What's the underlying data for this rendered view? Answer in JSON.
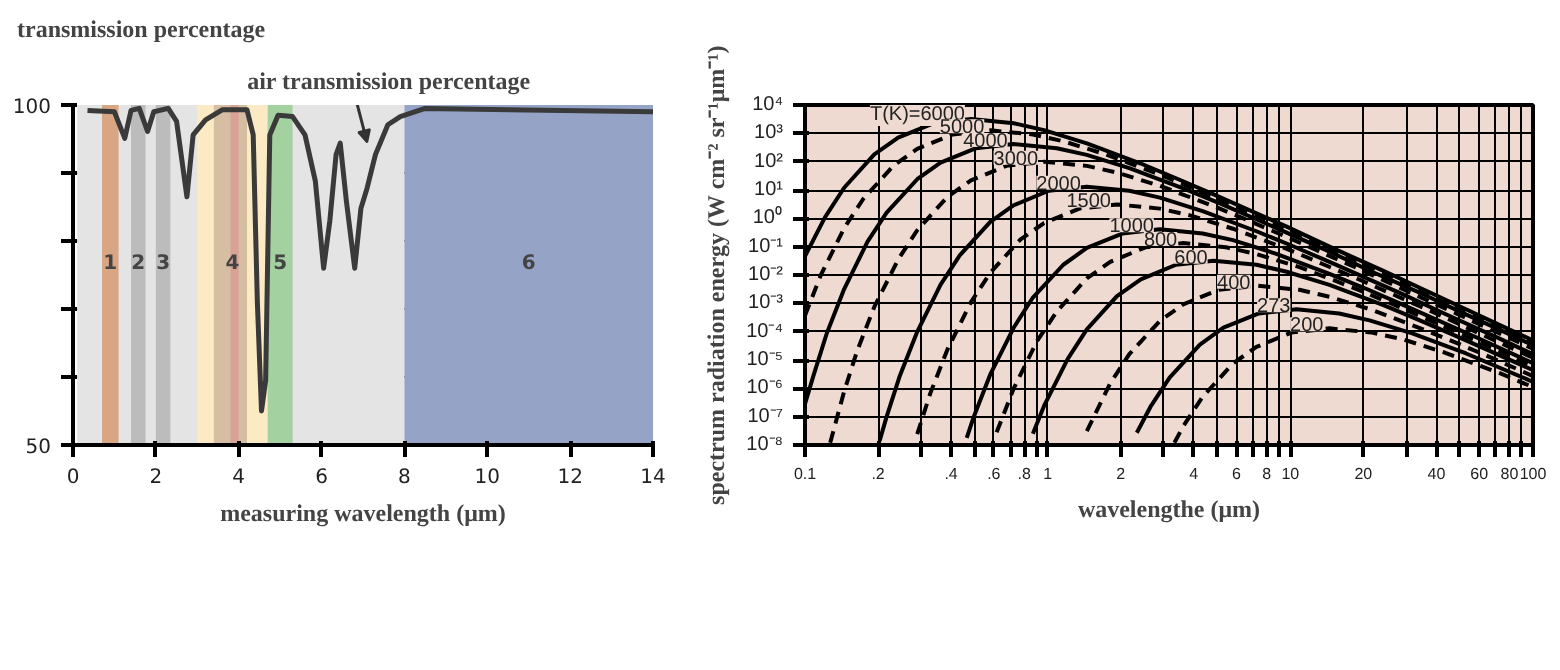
{
  "chart_data": [
    {
      "type": "line",
      "ylabel": "transmission percentage",
      "xlabel": "measuring wavelength (μm)",
      "x": [
        0.35,
        1.0,
        1.25,
        1.4,
        1.6,
        1.8,
        1.95,
        2.3,
        2.5,
        2.75,
        2.9,
        3.2,
        3.6,
        4.2,
        4.35,
        4.45,
        4.55,
        4.65,
        4.75,
        4.95,
        5.3,
        5.6,
        5.85,
        6.05,
        6.2,
        6.35,
        6.45,
        6.6,
        6.8,
        6.95,
        7.1,
        7.3,
        7.6,
        7.9,
        8.5,
        14
      ],
      "values": [
        99.2,
        99,
        95.1,
        99.2,
        99.5,
        96.1,
        99,
        99.5,
        97.6,
        86.5,
        95.6,
        97.8,
        99.3,
        99.3,
        95.6,
        71,
        55,
        59.5,
        95.6,
        98.5,
        98.3,
        95.6,
        88.8,
        76,
        83,
        92.7,
        94.4,
        85.8,
        76,
        84.8,
        87.8,
        92.7,
        97.1,
        98.3,
        99.5,
        99
      ],
      "color": "#3a3a3a",
      "xlim": [
        0,
        14
      ],
      "ylim": [
        50,
        100
      ],
      "xticks": [
        0,
        2,
        4,
        6,
        8,
        10,
        12,
        14
      ],
      "yticks": [
        50,
        {
          "value": 60,
          "label": null
        },
        {
          "value": 70,
          "label": null
        },
        {
          "value": 80,
          "label": null
        },
        {
          "value": 90,
          "label": null
        },
        100
      ],
      "grid": "y",
      "bands": [
        {
          "axis": "x",
          "from": 0.1,
          "to": 8,
          "label": null,
          "color": "#e4e4e4"
        },
        {
          "axis": "x",
          "from": 0.7,
          "to": 1.1,
          "label": "1",
          "color": "#d9a684"
        },
        {
          "axis": "x",
          "from": 1.4,
          "to": 1.75,
          "label": "2",
          "color": "#bcbcbc"
        },
        {
          "axis": "x",
          "from": 2.0,
          "to": 2.35,
          "label": "3",
          "color": "#bcbcbc"
        },
        {
          "axis": "x",
          "from": 3.0,
          "to": 4.7,
          "label": "4",
          "color": "#fbeac4"
        },
        {
          "axis": "x",
          "from": 3.4,
          "to": 4.2,
          "label": null,
          "color": "#d6bea2"
        },
        {
          "axis": "x",
          "from": 3.8,
          "to": 4.0,
          "label": null,
          "color": "#d9a296"
        },
        {
          "axis": "x",
          "from": 4.7,
          "to": 5.3,
          "label": "5",
          "color": "#a3d1a0"
        },
        {
          "axis": "x",
          "from": 8,
          "to": 14,
          "label": "6",
          "color": "#95a4c6"
        }
      ],
      "annotations": [
        {
          "text": "air transmission percentage",
          "x": 7.1,
          "y": 94
        }
      ]
    },
    {
      "type": "line",
      "xlabel": "wavelengthe (μm)",
      "ylabel": "spectrum radiation energy (W cm⁻² sr⁻¹μm⁻¹)",
      "log": "xy",
      "xlim": [
        0.1,
        100
      ],
      "ylim": [
        1e-08,
        10000
      ],
      "grid": true,
      "xticks": [
        {
          "value": 0.1,
          "label": "0.1"
        },
        {
          "value": 0.2,
          "label": ".2"
        },
        {
          "value": 0.3,
          "label": null
        },
        {
          "value": 0.4,
          "label": ".4"
        },
        {
          "value": 0.5,
          "label": null
        },
        {
          "value": 0.6,
          "label": ".6"
        },
        {
          "value": 0.7,
          "label": null
        },
        {
          "value": 0.8,
          "label": ".8"
        },
        {
          "value": 0.9,
          "label": null
        },
        1,
        2,
        {
          "value": 3,
          "label": null
        },
        4,
        {
          "value": 5,
          "label": null
        },
        6,
        {
          "value": 7,
          "label": null
        },
        8,
        {
          "value": 9,
          "label": null
        },
        10,
        20,
        {
          "value": 30,
          "label": null
        },
        40,
        {
          "value": 50,
          "label": null
        },
        60,
        {
          "value": 70,
          "label": null
        },
        80,
        {
          "value": 90,
          "label": null
        },
        100
      ],
      "yticks": [
        {
          "value": 1e-08,
          "label": "10⁻⁸"
        },
        {
          "value": 1e-07,
          "label": "10⁻⁷"
        },
        {
          "value": 1e-06,
          "label": "10⁻⁶"
        },
        {
          "value": 1e-05,
          "label": "10⁻⁵"
        },
        {
          "value": 0.0001,
          "label": "10⁻⁴"
        },
        {
          "value": 0.001,
          "label": "10⁻³"
        },
        {
          "value": 0.01,
          "label": "10⁻²"
        },
        {
          "value": 0.1,
          "label": "10⁻¹"
        },
        {
          "value": 1,
          "label": "10⁰"
        },
        {
          "value": 10,
          "label": "10¹"
        },
        {
          "value": 100,
          "label": "10²"
        },
        {
          "value": 1000,
          "label": "10³"
        },
        {
          "value": 10000,
          "label": "10⁴"
        }
      ],
      "series": [
        {
          "name": "T(K)=6000",
          "color": "#000000",
          "line_style": "solid",
          "x": [
            0.1,
            0.121,
            0.145,
            0.193,
            0.242,
            0.338,
            0.483,
            0.725,
            0.966,
            1.45,
            2.42,
            3.38,
            4.83,
            9.66,
            14.5,
            24.2,
            33.8,
            48.3,
            100
          ],
          "values": [
            0.046,
            1.1,
            12,
            181,
            700,
            2260,
            3180,
            2260,
            1300,
            445,
            86,
            26,
            7.0,
            0.51,
            0.1,
            0.014,
            0.0037,
            0.00089,
            4.9e-05
          ]
        },
        {
          "name": "5000",
          "color": "#000000",
          "line_style": "dashed",
          "x": [
            0.1,
            0.116,
            0.145,
            0.174,
            0.232,
            0.29,
            0.406,
            0.58,
            0.87,
            1.16,
            1.74,
            2.9,
            4.06,
            5.8,
            11.6,
            17.4,
            29,
            40.6,
            58,
            100
          ],
          "values": [
            0.00037,
            0.0096,
            0.45,
            4.9,
            73,
            282,
            909,
            1280,
            909,
            525,
            179,
            35,
            10.5,
            2.8,
            0.2,
            0.041,
            0.0056,
            0.0015,
            0.00036,
            4.1e-05
          ]
        },
        {
          "name": "4000",
          "color": "#000000",
          "line_style": "solid",
          "x": [
            0.1,
            0.109,
            0.123,
            0.145,
            0.181,
            0.217,
            0.29,
            0.362,
            0.507,
            0.724,
            1.09,
            1.45,
            2.17,
            3.62,
            5.07,
            7.24,
            14.5,
            21.7,
            36.2,
            50.7,
            72.4,
            100
          ],
          "values": [
            2.8e-07,
            3.3e-06,
            8.8e-05,
            0.0032,
            0.15,
            1.6,
            24,
            93,
            299,
            421,
            299,
            173,
            59,
            11.4,
            3.5,
            0.93,
            0.067,
            0.013,
            0.0019,
            0.00048,
            0.00012,
            3.3e-05
          ]
        },
        {
          "name": "3000",
          "color": "#000000",
          "line_style": "dashed",
          "x": [
            0.127,
            0.145,
            0.164,
            0.193,
            0.242,
            0.29,
            0.386,
            0.483,
            0.676,
            0.966,
            1.45,
            1.93,
            2.9,
            4.83,
            6.76,
            9.66,
            19.3,
            29,
            48.3,
            67.6,
            100
          ],
          "values": [
            1.2e-08,
            7.8e-07,
            2.1e-05,
            0.00075,
            0.035,
            0.38,
            5.7,
            22,
            71,
            100,
            71,
            41,
            14,
            2.7,
            0.82,
            0.22,
            0.016,
            0.0032,
            0.00044,
            0.000115,
            2.5e-05
          ]
        },
        {
          "name": "2000",
          "color": "#000000",
          "line_style": "solid",
          "x": [
            0.203,
            0.217,
            0.246,
            0.29,
            0.362,
            0.435,
            0.58,
            0.725,
            1.01,
            1.45,
            2.17,
            2.9,
            4.35,
            7.25,
            10.1,
            14.5,
            29,
            43.5,
            72.5,
            100
          ],
          "values": [
            1.4e-08,
            1e-07,
            2.8e-06,
            9.9e-05,
            0.0046,
            0.05,
            0.75,
            2.9,
            9.4,
            13.1,
            9.4,
            5.4,
            1.8,
            0.35,
            0.11,
            0.029,
            0.0021,
            0.00042,
            5.8e-05,
            1.6e-05
          ]
        },
        {
          "name": "1500",
          "color": "#000000",
          "line_style": "dashed",
          "x": [
            0.29,
            0.328,
            0.386,
            0.483,
            0.58,
            0.773,
            0.966,
            1.35,
            1.93,
            2.9,
            3.86,
            5.8,
            9.66,
            13.5,
            19.3,
            38.6,
            58,
            100
          ],
          "values": [
            2.4e-08,
            6.5e-07,
            2.3e-05,
            0.0011,
            0.012,
            0.18,
            0.68,
            2.2,
            3.1,
            2.2,
            1.27,
            0.43,
            0.084,
            0.025,
            0.0068,
            0.0005,
            9.9e-05,
            1.2e-05
          ]
        },
        {
          "name": "1000",
          "color": "#000000",
          "line_style": "solid",
          "x": [
            0.464,
            0.493,
            0.58,
            0.725,
            0.869,
            1.16,
            1.45,
            2.03,
            2.9,
            4.35,
            5.8,
            8.7,
            14.5,
            20.3,
            29,
            58,
            100
          ],
          "values": [
            1.8e-08,
            8.6e-08,
            3.1e-06,
            0.00014,
            0.0016,
            0.023,
            0.09,
            0.29,
            0.41,
            0.29,
            0.17,
            0.057,
            0.011,
            0.0034,
            0.0009,
            6.5e-05,
            7.7e-06
          ]
        },
        {
          "name": "800",
          "color": "#000000",
          "line_style": "dashed",
          "x": [
            0.616,
            0.725,
            0.905,
            1.09,
            1.45,
            1.81,
            2.53,
            3.62,
            5.43,
            7.24,
            10.9,
            18.1,
            25.3,
            36.2,
            72.4,
            100
          ],
          "values": [
            2.8e-08,
            1e-06,
            4.7e-05,
            0.00051,
            0.0076,
            0.029,
            0.095,
            0.134,
            0.095,
            0.055,
            0.019,
            0.0036,
            0.0011,
            0.00029,
            2.1e-05,
            6e-06
          ]
        },
        {
          "name": "600",
          "color": "#000000",
          "line_style": "solid",
          "x": [
            0.869,
            0.966,
            1.21,
            1.45,
            1.93,
            2.42,
            3.38,
            4.83,
            7.25,
            9.66,
            14.5,
            24.2,
            33.8,
            48.3,
            100
          ],
          "values": [
            2.5e-08,
            2.4e-07,
            1.1e-05,
            0.00012,
            0.0018,
            0.007,
            0.023,
            0.032,
            0.023,
            0.013,
            0.0045,
            0.00086,
            0.00026,
            7e-05,
            4.4e-06
          ]
        },
        {
          "name": "400",
          "color": "#000000",
          "line_style": "dashed",
          "x": [
            1.45,
            1.81,
            2.17,
            2.9,
            3.62,
            5.07,
            7.25,
            10.9,
            14.5,
            21.7,
            36.2,
            50.7,
            72.5,
            100
          ],
          "values": [
            3.1e-08,
            1.5e-06,
            1.6e-05,
            0.00024,
            0.00092,
            0.003,
            0.0042,
            0.003,
            0.0017,
            0.00059,
            0.00011,
            3.4e-05,
            9.2e-06,
            2.7e-06
          ]
        },
        {
          "name": "273",
          "color": "#000000",
          "line_style": "solid",
          "x": [
            2.33,
            2.65,
            3.18,
            4.24,
            5.3,
            7.42,
            10.6,
            15.9,
            21.2,
            31.8,
            53,
            100
          ],
          "values": [
            2.7e-08,
            2.2e-07,
            2.4e-06,
            3.5e-05,
            0.00014,
            0.00044,
            0.00062,
            0.00044,
            0.00025,
            8.7e-05,
            1.7e-05,
            1.7e-06
          ]
        },
        {
          "name": "200",
          "color": "#000000",
          "line_style": "dashed",
          "x": [
            3.33,
            3.62,
            4.35,
            5.8,
            7.25,
            10.1,
            14.5,
            21.7,
            29,
            43.5,
            72.5,
            100
          ],
          "values": [
            1.2e-08,
            4.6e-08,
            5e-07,
            7.5e-06,
            2.9e-05,
            9.3e-05,
            0.000131,
            9.3e-05,
            5.4e-05,
            1.8e-05,
            3.5e-06,
            1.1e-06
          ]
        }
      ]
    }
  ]
}
